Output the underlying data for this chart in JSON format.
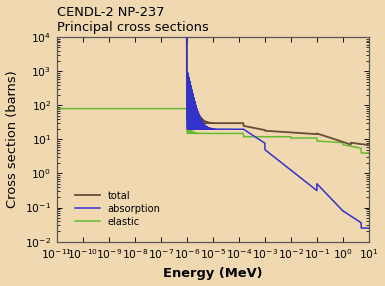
{
  "title_line1": "CENDL-2 NP-237",
  "title_line2": "Principal cross sections",
  "xlabel": "Energy (MeV)",
  "ylabel": "Cross section (barns)",
  "xlim_log": [
    -11,
    1
  ],
  "ylim_log": [
    -2,
    4
  ],
  "bg_color": "#f0d9b0",
  "plot_bg_color": "#f0d9b0",
  "color_total": "#6b4c3b",
  "color_absorption": "#3333cc",
  "color_elastic": "#66bb33",
  "legend_labels": [
    "total",
    "absorption",
    "elastic"
  ],
  "title_fontsize": 8.5,
  "label_fontsize": 8.5,
  "tick_fontsize": 7,
  "lw_total": 1.2,
  "lw_absorption": 1.0,
  "lw_elastic": 1.0
}
